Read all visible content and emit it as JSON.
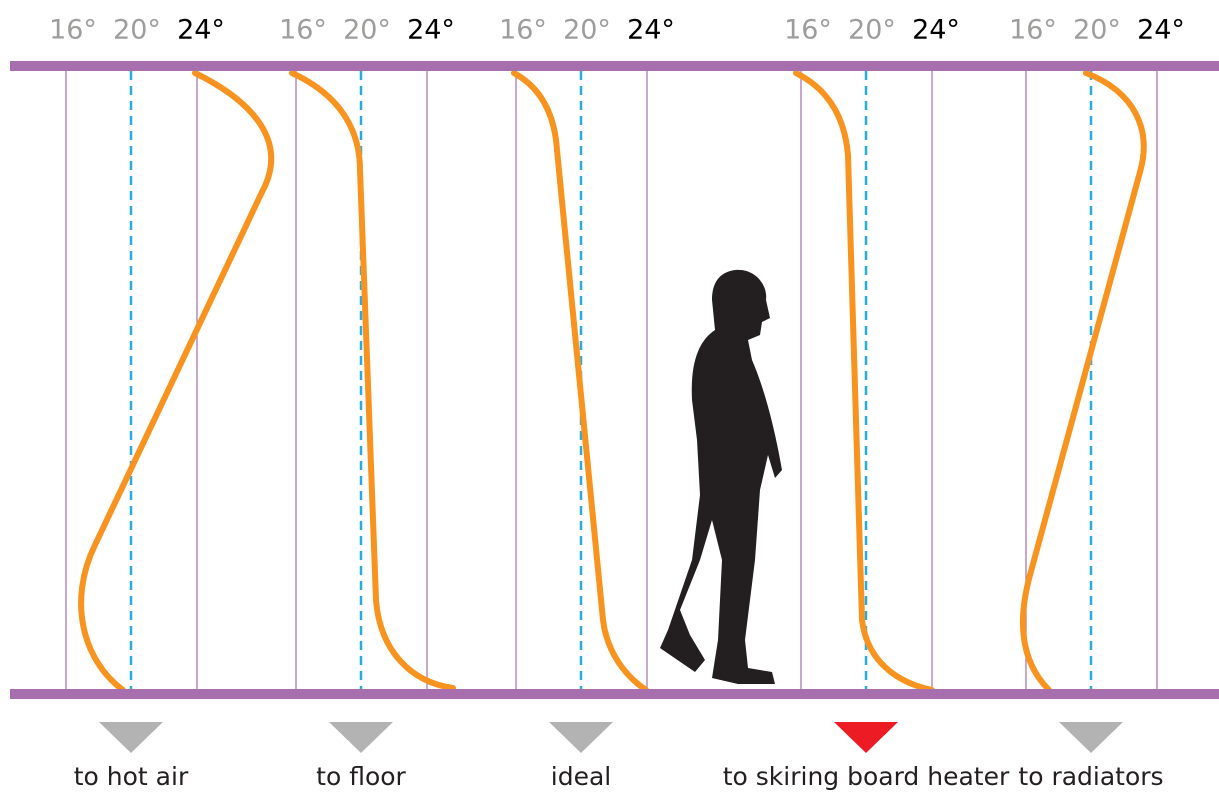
{
  "panels": [
    {
      "scale": [
        "16°",
        "20°",
        "24°"
      ],
      "caption": "to hot air"
    },
    {
      "scale": [
        "16°",
        "20°",
        "24°"
      ],
      "caption": "to floor"
    },
    {
      "scale": [
        "16°",
        "20°",
        "24°"
      ],
      "caption": "ideal"
    },
    {
      "scale": [
        "16°",
        "20°",
        "24°"
      ],
      "caption": "to skiring board heater"
    },
    {
      "scale": [
        "16°",
        "20°",
        "24°"
      ],
      "caption": "to radiators"
    }
  ]
}
